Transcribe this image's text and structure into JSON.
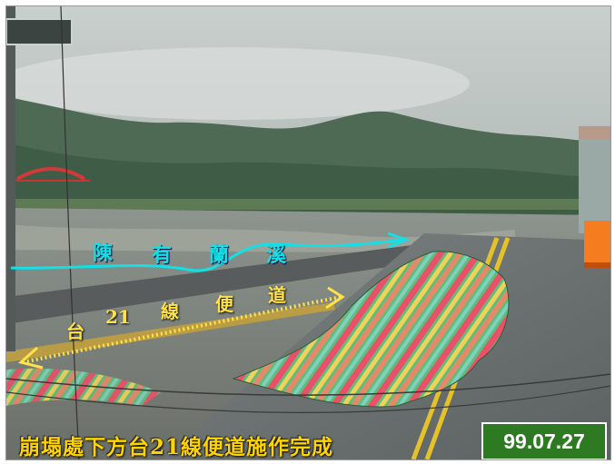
{
  "labels": {
    "stream": [
      "陳",
      "有",
      "蘭",
      "溪"
    ],
    "road_prefix": "台",
    "road_number": "21",
    "road_chars": [
      "線",
      "便",
      "道"
    ]
  },
  "caption": "崩塌處下方台21線便道施作完成",
  "date": "99.07.27",
  "colors": {
    "caption": "#ffd400",
    "date_bg": "#2d7a22",
    "stream_arrow": "#12e0e6",
    "road_arrow": "#ffe24a",
    "marker": "#f57c1f"
  }
}
